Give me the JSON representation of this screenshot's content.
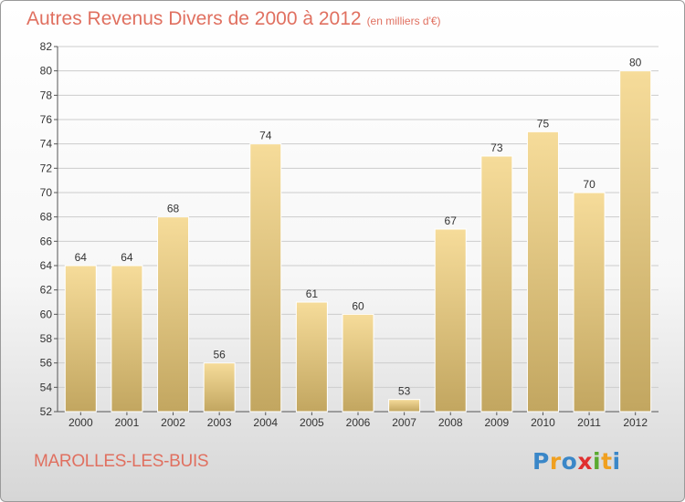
{
  "title": "Autres Revenus Divers de 2000 à 2012",
  "subtitle": "(en milliers d'€)",
  "commune": "MAROLLES-LES-BUIS",
  "logo": {
    "text": "Proxiti",
    "letters": [
      {
        "ch": "P",
        "color": "#3a87c8"
      },
      {
        "ch": "r",
        "color": "#f0a020"
      },
      {
        "ch": "o",
        "color": "#3a87c8"
      },
      {
        "ch": "x",
        "color": "#e03030"
      },
      {
        "ch": "i",
        "color": "#5aaa30"
      },
      {
        "ch": "t",
        "color": "#f0a020"
      },
      {
        "ch": "i",
        "color": "#3a87c8"
      }
    ]
  },
  "colors": {
    "title": "#e07060",
    "bar_light": "#f6dc9a",
    "bar_dark": "#c2a660",
    "grid": "#cccccc"
  },
  "chart_data": {
    "type": "bar",
    "categories": [
      "2000",
      "2001",
      "2002",
      "2003",
      "2004",
      "2005",
      "2006",
      "2007",
      "2008",
      "2009",
      "2010",
      "2011",
      "2012"
    ],
    "values": [
      64,
      64,
      68,
      56,
      74,
      61,
      60,
      53,
      67,
      73,
      75,
      70,
      80
    ],
    "ylim": [
      52,
      82
    ],
    "yticks": [
      52,
      54,
      56,
      58,
      60,
      62,
      64,
      66,
      68,
      70,
      72,
      74,
      76,
      78,
      80,
      82
    ],
    "grid": true,
    "legend": "none"
  }
}
